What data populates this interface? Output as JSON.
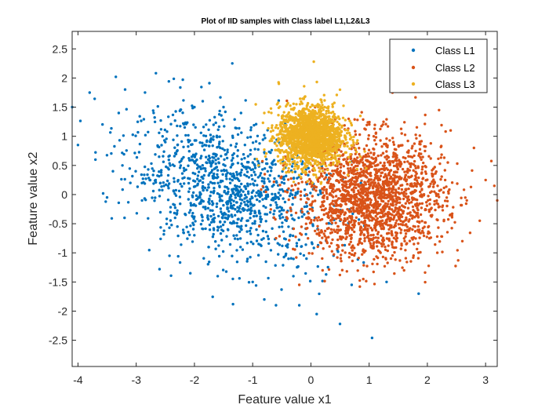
{
  "chart_data": {
    "type": "scatter",
    "title": "Plot of IID samples with Class label L1,L2&L3",
    "xlabel": "Feature value x1",
    "ylabel": "Feature value x2",
    "xlim": [
      -4.1,
      3.2
    ],
    "ylim": [
      -2.95,
      2.8
    ],
    "xticks": [
      -4,
      -3,
      -2,
      -1,
      0,
      1,
      2,
      3
    ],
    "yticks": [
      -2.5,
      -2,
      -1.5,
      -1,
      -0.5,
      0,
      0.5,
      1,
      1.5,
      2,
      2.5
    ],
    "xtick_labels": [
      "-4",
      "-3",
      "-2",
      "-1",
      "0",
      "1",
      "2",
      "3"
    ],
    "ytick_labels": [
      "-2.5",
      "-2",
      "-1.5",
      "-1",
      "-0.5",
      "0",
      "0.5",
      "1",
      "1.5",
      "2",
      "2.5"
    ],
    "grid": false,
    "legend_position": "top-right",
    "series": [
      {
        "name": "Class L1",
        "color": "#0072BD",
        "points": [
          [
            -4.1,
            1.5
          ],
          [
            -4.0,
            0.85
          ],
          [
            -3.8,
            1.75
          ],
          [
            -3.7,
            0.6
          ],
          [
            -3.5,
            -0.05
          ],
          [
            -3.4,
            0.4
          ],
          [
            -3.35,
            2.02
          ],
          [
            -3.3,
            1.4
          ],
          [
            -3.2,
            -0.4
          ],
          [
            -3.1,
            0.2
          ],
          [
            -2.9,
            -0.1
          ],
          [
            -2.6,
            -1.28
          ],
          [
            -2.5,
            0.9
          ],
          [
            -2.2,
            1.97
          ],
          [
            -2.0,
            1.5
          ],
          [
            -1.8,
            1.2
          ],
          [
            -1.5,
            1.5
          ],
          [
            -1.35,
            2.25
          ],
          [
            -1.2,
            1.4
          ],
          [
            -1.0,
            -1.5
          ],
          [
            -0.8,
            -1.8
          ],
          [
            -0.6,
            -1.9
          ],
          [
            -0.3,
            -1.4
          ],
          [
            -0.2,
            -1.9
          ],
          [
            0.1,
            -2.05
          ],
          [
            0.5,
            -2.22
          ],
          [
            0.7,
            -1.55
          ],
          [
            1.05,
            -2.46
          ],
          [
            1.3,
            -1.5
          ],
          [
            1.85,
            -1.7
          ],
          [
            -1.6,
            -1.4
          ]
        ],
        "clusters": [
          {
            "cx": -1.4,
            "cy": 0.1,
            "sx": 0.85,
            "sy": 0.62,
            "rho": -0.35,
            "n": 1150
          }
        ]
      },
      {
        "name": "Class L2",
        "color": "#D95319",
        "points": [
          [
            -0.6,
            -0.75
          ],
          [
            -0.2,
            -1.55
          ],
          [
            0.2,
            -1.3
          ],
          [
            0.9,
            -1.45
          ],
          [
            1.6,
            -1.3
          ],
          [
            2.4,
            1.1
          ],
          [
            2.6,
            -0.8
          ],
          [
            2.9,
            -0.45
          ],
          [
            3.0,
            0.25
          ],
          [
            3.15,
            0.15
          ],
          [
            3.2,
            -0.1
          ],
          [
            2.8,
            0.8
          ],
          [
            1.4,
            1.75
          ],
          [
            2.2,
            1.45
          ]
        ],
        "clusters": [
          {
            "cx": 1.05,
            "cy": -0.05,
            "sx": 0.62,
            "sy": 0.52,
            "rho": 0.0,
            "n": 1900
          }
        ]
      },
      {
        "name": "Class L3",
        "color": "#EDB120",
        "points": [
          [
            0.05,
            2.28
          ],
          [
            -0.55,
            1.9
          ],
          [
            0.5,
            1.8
          ],
          [
            -0.8,
            1.4
          ],
          [
            0.85,
            1.35
          ],
          [
            -0.9,
            0.5
          ],
          [
            0.95,
            0.45
          ]
        ],
        "clusters": [
          {
            "cx": 0.0,
            "cy": 1.0,
            "sx": 0.28,
            "sy": 0.26,
            "rho": 0.0,
            "n": 1700
          }
        ]
      }
    ]
  }
}
